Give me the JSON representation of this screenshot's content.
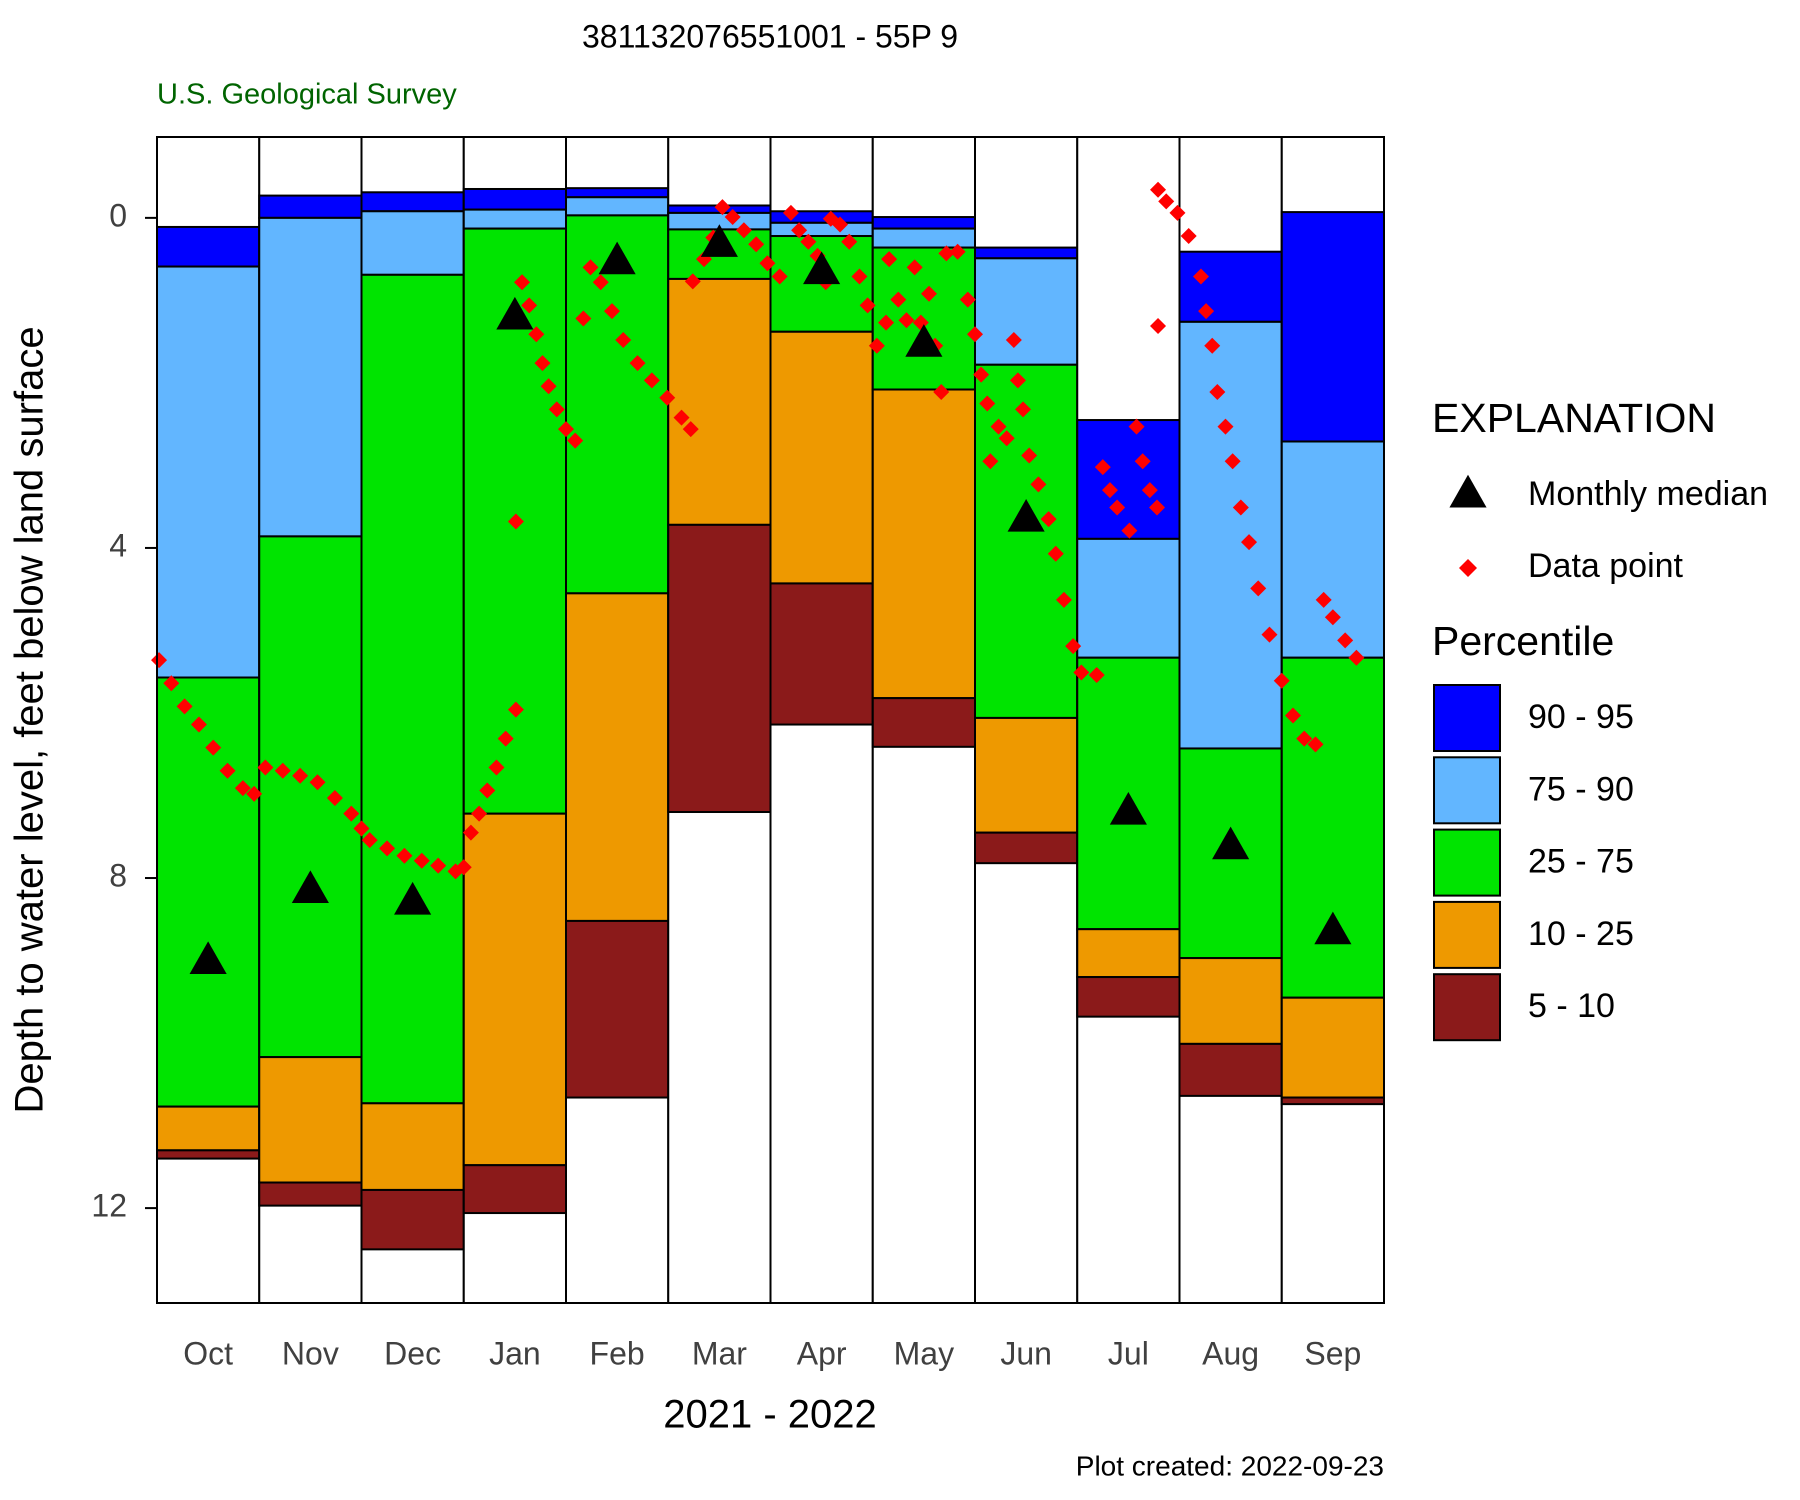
{
  "chart_data": {
    "type": "percentile_bars",
    "title": "381132076551001 - 55P  9",
    "subtitle": "U.S. Geological Survey",
    "y_label": "Depth to water level, feet below land surface",
    "x_label": "2021 - 2022",
    "footnote": "Plot created: 2022-09-23",
    "legend_title": "EXPLANATION",
    "percentile_title": "Percentile",
    "categories": [
      "Oct",
      "Nov",
      "Dec",
      "Jan",
      "Feb",
      "Mar",
      "Apr",
      "May",
      "Jun",
      "Jul",
      "Aug",
      "Sep"
    ],
    "ylim": [
      13.15,
      -0.98
    ],
    "yticks": [
      0,
      4,
      8,
      12
    ],
    "xlim": [
      0,
      12
    ],
    "boundaries": [
      [
        0.11,
        -0.27,
        -0.31,
        -0.35,
        -0.36,
        -0.15,
        -0.08,
        -0.01,
        0.36,
        2.45,
        0.41,
        -0.07
      ],
      [
        0.59,
        0.0,
        -0.08,
        -0.1,
        -0.25,
        -0.06,
        0.06,
        0.13,
        0.49,
        3.89,
        1.26,
        2.71
      ],
      [
        5.57,
        3.86,
        0.69,
        0.13,
        -0.03,
        0.14,
        0.22,
        0.36,
        1.78,
        5.33,
        6.43,
        5.33
      ],
      [
        10.77,
        10.17,
        10.73,
        7.22,
        4.55,
        0.74,
        1.38,
        2.08,
        6.06,
        8.62,
        8.97,
        9.45
      ],
      [
        11.3,
        11.69,
        11.78,
        11.48,
        8.52,
        3.72,
        4.43,
        5.82,
        7.45,
        9.2,
        10.01,
        10.66
      ],
      [
        11.4,
        11.97,
        12.5,
        12.06,
        10.66,
        7.2,
        6.14,
        6.41,
        7.82,
        9.68,
        10.64,
        10.74
      ]
    ],
    "bands": [
      {
        "name": "90 - 95",
        "color": "#0000ff"
      },
      {
        "name": "75 - 90",
        "color": "#62b6ff"
      },
      {
        "name": "25 - 75",
        "color": "#00e400"
      },
      {
        "name": "10 - 25",
        "color": "#ee9900"
      },
      {
        "name": "5 - 10",
        "color": "#8b1a1a"
      }
    ],
    "median": {
      "name": "Monthly median",
      "color": "#000000",
      "values": [
        9.0,
        8.14,
        8.28,
        1.19,
        0.52,
        0.31,
        0.64,
        1.52,
        3.64,
        7.19,
        7.61,
        8.64
      ]
    },
    "data_points": {
      "name": "Data point",
      "color": "#ff0000",
      "x": [
        0.02,
        0.14,
        0.27,
        0.41,
        0.55,
        0.69,
        0.84,
        0.95,
        1.06,
        1.23,
        1.4,
        1.57,
        1.74,
        1.9,
        2.0,
        2.08,
        2.25,
        2.42,
        2.59,
        2.75,
        2.92,
        3.0,
        3.07,
        3.15,
        3.23,
        3.32,
        3.41,
        3.51,
        3.51,
        3.57,
        3.64,
        3.71,
        3.77,
        3.83,
        3.91,
        4.0,
        4.09,
        4.17,
        4.24,
        4.34,
        4.45,
        4.56,
        4.7,
        4.84,
        4.99,
        5.13,
        5.22,
        5.24,
        5.35,
        5.44,
        5.53,
        5.63,
        5.74,
        5.86,
        5.97,
        6.09,
        6.2,
        6.28,
        6.37,
        6.46,
        6.54,
        6.59,
        6.68,
        6.77,
        6.87,
        6.95,
        7.04,
        7.13,
        7.16,
        7.25,
        7.33,
        7.41,
        7.47,
        7.55,
        7.61,
        7.67,
        7.72,
        7.83,
        7.93,
        8.0,
        8.06,
        8.12,
        8.15,
        8.23,
        8.31,
        8.38,
        8.42,
        8.47,
        8.53,
        8.62,
        8.72,
        8.79,
        8.87,
        8.96,
        9.04,
        9.19,
        9.25,
        9.32,
        9.39,
        9.51,
        9.58,
        9.64,
        9.71,
        9.78,
        9.79,
        9.79,
        9.87,
        9.98,
        10.09,
        10.21,
        10.26,
        10.32,
        10.37,
        10.45,
        10.52,
        10.6,
        10.68,
        10.77,
        10.88,
        11.0,
        11.11,
        11.22,
        11.33,
        11.41,
        11.5,
        11.62,
        11.73
      ],
      "y": [
        5.36,
        5.64,
        5.92,
        6.14,
        6.42,
        6.7,
        6.91,
        6.98,
        6.66,
        6.7,
        6.76,
        6.84,
        7.03,
        7.22,
        7.4,
        7.54,
        7.64,
        7.73,
        7.79,
        7.85,
        7.92,
        7.87,
        7.45,
        7.22,
        6.94,
        6.66,
        6.31,
        5.96,
        3.68,
        0.78,
        1.06,
        1.41,
        1.76,
        2.04,
        2.32,
        2.56,
        2.7,
        1.22,
        0.6,
        0.78,
        1.13,
        1.48,
        1.76,
        1.97,
        2.18,
        2.42,
        2.56,
        0.77,
        0.5,
        0.24,
        -0.13,
        -0.01,
        0.15,
        0.32,
        0.55,
        0.71,
        -0.06,
        0.15,
        0.29,
        0.46,
        0.78,
        0.01,
        0.08,
        0.29,
        0.71,
        1.06,
        1.55,
        1.27,
        0.5,
        0.99,
        1.24,
        0.6,
        1.27,
        0.92,
        1.55,
        2.11,
        0.43,
        0.41,
        0.99,
        1.41,
        1.9,
        2.25,
        2.95,
        2.53,
        2.67,
        1.48,
        1.97,
        2.32,
        2.88,
        3.23,
        3.65,
        4.07,
        4.63,
        5.19,
        5.51,
        5.54,
        3.02,
        3.3,
        3.51,
        3.79,
        2.53,
        2.95,
        3.3,
        3.51,
        1.31,
        -0.34,
        -0.2,
        -0.06,
        0.22,
        0.71,
        1.13,
        1.55,
        2.11,
        2.53,
        2.95,
        3.51,
        3.93,
        4.49,
        5.05,
        5.61,
        6.03,
        6.31,
        6.38,
        4.63,
        4.84,
        5.12,
        5.33
      ]
    }
  }
}
